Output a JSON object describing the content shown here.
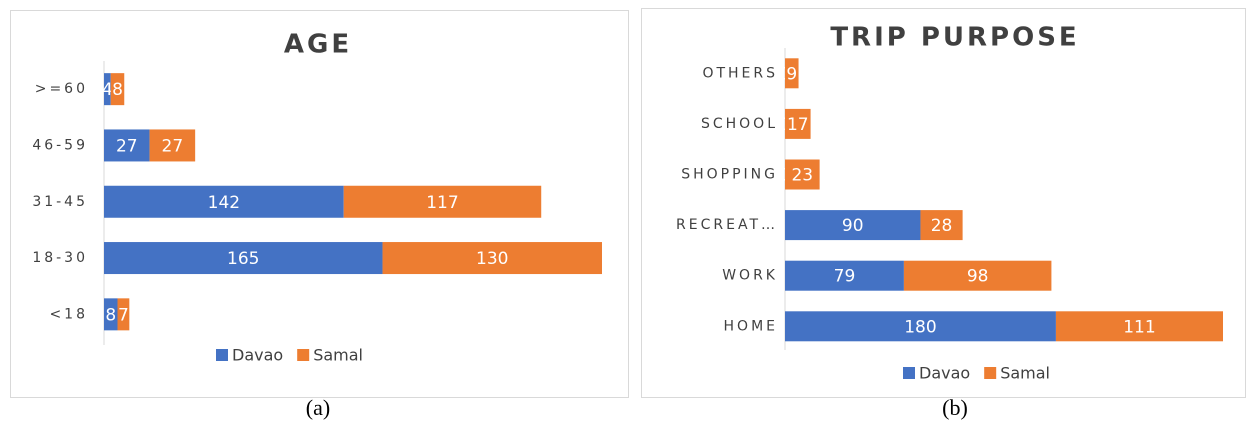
{
  "chart_data": [
    {
      "type": "stacked-bar-horizontal",
      "title": "AGE",
      "categories": [
        ">=60",
        "46-59",
        "31-45",
        "18-30",
        "<18"
      ],
      "series": [
        {
          "name": "Davao",
          "color": "#4472c4",
          "values": [
            4,
            27,
            142,
            165,
            8
          ]
        },
        {
          "name": "Samal",
          "color": "#ed7d31",
          "values": [
            8,
            27,
            117,
            130,
            7
          ]
        }
      ],
      "legend": "bottom"
    },
    {
      "type": "stacked-bar-horizontal",
      "title": "TRIP PURPOSE",
      "categories": [
        "OTHERS",
        "SCHOOL",
        "SHOPPING",
        "RECREAT…",
        "WORK",
        "HOME"
      ],
      "series": [
        {
          "name": "Davao",
          "color": "#4472c4",
          "values": [
            0,
            0,
            0,
            90,
            79,
            180
          ]
        },
        {
          "name": "Samal",
          "color": "#ed7d31",
          "values": [
            9,
            17,
            23,
            28,
            98,
            111
          ]
        }
      ],
      "legend": "bottom"
    }
  ],
  "captions": [
    "(a)",
    "(b)"
  ]
}
